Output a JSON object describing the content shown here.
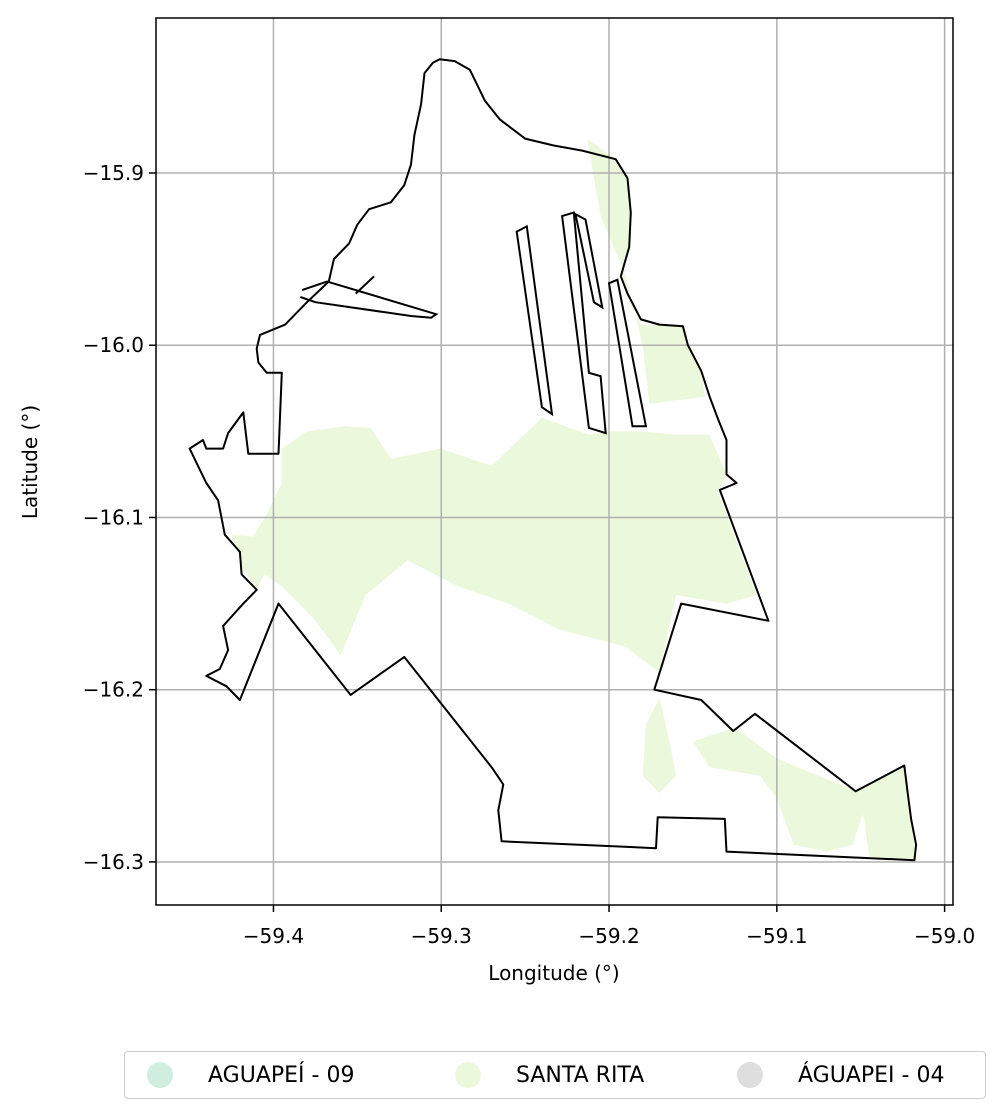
{
  "chart_data": {
    "type": "map",
    "xlabel": "Longitude (°)",
    "ylabel": "Latitude (°)",
    "xlim": [
      -59.47,
      -58.995
    ],
    "ylim": [
      -16.325,
      -15.81
    ],
    "xticks": [
      -59.4,
      -59.3,
      -59.2,
      -59.1,
      -59.0
    ],
    "xtick_labels": [
      "−59.4",
      "−59.3",
      "−59.2",
      "−59.1",
      "−59.0"
    ],
    "yticks": [
      -15.9,
      -16.0,
      -16.1,
      -16.2,
      -16.3
    ],
    "ytick_labels": [
      "−15.9",
      "−16.0",
      "−16.1",
      "−16.2",
      "−16.3"
    ],
    "grid": true,
    "legend": {
      "placement": "bottom-center",
      "entries": [
        {
          "label": "AGUAPEÍ - 09",
          "color": "#cfeee0"
        },
        {
          "label": "SANTA RITA",
          "color": "#ecf8dc"
        },
        {
          "label": "ÁGUAPEI - 04",
          "color": "#dedede"
        }
      ]
    },
    "outline_color": "#000000",
    "fill_color": "#ecf8dc",
    "boundary_lonlat": [
      [
        -59.301,
        -15.834
      ],
      [
        -59.292,
        -15.835
      ],
      [
        -59.283,
        -15.84
      ],
      [
        -59.274,
        -15.858
      ],
      [
        -59.265,
        -15.869
      ],
      [
        -59.25,
        -15.88
      ],
      [
        -59.233,
        -15.884
      ],
      [
        -59.216,
        -15.887
      ],
      [
        -59.196,
        -15.892
      ],
      [
        -59.189,
        -15.903
      ],
      [
        -59.187,
        -15.923
      ],
      [
        -59.188,
        -15.943
      ],
      [
        -59.193,
        -15.96
      ],
      [
        -59.189,
        -15.97
      ],
      [
        -59.181,
        -15.985
      ],
      [
        -59.17,
        -15.988
      ],
      [
        -59.156,
        -15.989
      ],
      [
        -59.153,
        -16.0
      ],
      [
        -59.145,
        -16.015
      ],
      [
        -59.14,
        -16.03
      ],
      [
        -59.135,
        -16.043
      ],
      [
        -59.13,
        -16.055
      ],
      [
        -59.13,
        -16.075
      ],
      [
        -59.124,
        -16.08
      ],
      [
        -59.134,
        -16.084
      ],
      [
        -59.105,
        -16.16
      ],
      [
        -59.157,
        -16.15
      ],
      [
        -59.173,
        -16.2
      ],
      [
        -59.145,
        -16.206
      ],
      [
        -59.126,
        -16.224
      ],
      [
        -59.113,
        -16.214
      ],
      [
        -59.053,
        -16.259
      ],
      [
        -59.024,
        -16.244
      ],
      [
        -59.022,
        -16.26
      ],
      [
        -59.02,
        -16.275
      ],
      [
        -59.017,
        -16.29
      ],
      [
        -59.018,
        -16.299
      ],
      [
        -59.13,
        -16.294
      ],
      [
        -59.131,
        -16.275
      ],
      [
        -59.171,
        -16.274
      ],
      [
        -59.172,
        -16.292
      ],
      [
        -59.264,
        -16.288
      ],
      [
        -59.266,
        -16.27
      ],
      [
        -59.263,
        -16.255
      ],
      [
        -59.27,
        -16.245
      ],
      [
        -59.322,
        -16.181
      ],
      [
        -59.354,
        -16.203
      ],
      [
        -59.397,
        -16.15
      ],
      [
        -59.42,
        -16.206
      ],
      [
        -59.428,
        -16.198
      ],
      [
        -59.44,
        -16.192
      ],
      [
        -59.432,
        -16.188
      ],
      [
        -59.427,
        -16.177
      ],
      [
        -59.43,
        -16.163
      ],
      [
        -59.418,
        -16.15
      ],
      [
        -59.41,
        -16.142
      ],
      [
        -59.419,
        -16.133
      ],
      [
        -59.42,
        -16.12
      ],
      [
        -59.429,
        -16.11
      ],
      [
        -59.433,
        -16.09
      ],
      [
        -59.44,
        -16.08
      ],
      [
        -59.45,
        -16.06
      ],
      [
        -59.442,
        -16.055
      ],
      [
        -59.44,
        -16.06
      ],
      [
        -59.43,
        -16.06
      ],
      [
        -59.427,
        -16.051
      ],
      [
        -59.418,
        -16.039
      ],
      [
        -59.415,
        -16.063
      ],
      [
        -59.397,
        -16.063
      ],
      [
        -59.395,
        -16.016
      ],
      [
        -59.404,
        -16.016
      ],
      [
        -59.409,
        -16.01
      ],
      [
        -59.41,
        -16.002
      ],
      [
        -59.408,
        -15.994
      ],
      [
        -59.393,
        -15.988
      ],
      [
        -59.38,
        -15.975
      ],
      [
        -59.367,
        -15.963
      ],
      [
        -59.364,
        -15.95
      ],
      [
        -59.355,
        -15.941
      ],
      [
        -59.35,
        -15.93
      ],
      [
        -59.343,
        -15.921
      ],
      [
        -59.33,
        -15.917
      ],
      [
        -59.322,
        -15.907
      ],
      [
        -59.318,
        -15.895
      ],
      [
        -59.316,
        -15.878
      ],
      [
        -59.312,
        -15.86
      ],
      [
        -59.31,
        -15.842
      ],
      [
        -59.305,
        -15.836
      ],
      [
        -59.301,
        -15.834
      ]
    ],
    "strips_lonlat": [
      [
        [
          -59.255,
          -15.934
        ],
        [
          -59.249,
          -15.931
        ],
        [
          -59.234,
          -16.04
        ],
        [
          -59.24,
          -16.036
        ]
      ],
      [
        [
          -59.228,
          -15.925
        ],
        [
          -59.221,
          -15.923
        ],
        [
          -59.212,
          -16.016
        ],
        [
          -59.205,
          -16.018
        ],
        [
          -59.202,
          -16.051
        ],
        [
          -59.212,
          -16.048
        ]
      ],
      [
        [
          -59.22,
          -15.924
        ],
        [
          -59.214,
          -15.927
        ],
        [
          -59.204,
          -15.978
        ],
        [
          -59.209,
          -15.975
        ]
      ],
      [
        [
          -59.2,
          -15.964
        ],
        [
          -59.195,
          -15.962
        ],
        [
          -59.178,
          -16.047
        ],
        [
          -59.186,
          -16.047
        ]
      ]
    ],
    "lines_lonlat": [
      [
        [
          -59.383,
          -15.968
        ],
        [
          -59.368,
          -15.963
        ],
        [
          -59.303,
          -15.982
        ],
        [
          -59.306,
          -15.984
        ],
        [
          -59.318,
          -15.983
        ],
        [
          -59.375,
          -15.975
        ],
        [
          -59.384,
          -15.972
        ]
      ],
      [
        [
          -59.351,
          -15.97
        ],
        [
          -59.34,
          -15.96
        ]
      ]
    ],
    "fill_regions_lonlat": [
      [
        [
          -59.395,
          -16.06
        ],
        [
          -59.38,
          -16.05
        ],
        [
          -59.358,
          -16.047
        ],
        [
          -59.342,
          -16.048
        ],
        [
          -59.33,
          -16.066
        ],
        [
          -59.3,
          -16.06
        ],
        [
          -59.27,
          -16.07
        ],
        [
          -59.24,
          -16.042
        ],
        [
          -59.212,
          -16.052
        ],
        [
          -59.2,
          -16.05
        ],
        [
          -59.18,
          -16.05
        ],
        [
          -59.16,
          -16.052
        ],
        [
          -59.14,
          -16.052
        ],
        [
          -59.13,
          -16.075
        ],
        [
          -59.135,
          -16.085
        ],
        [
          -59.112,
          -16.145
        ],
        [
          -59.13,
          -16.15
        ],
        [
          -59.16,
          -16.145
        ],
        [
          -59.17,
          -16.19
        ],
        [
          -59.19,
          -16.175
        ],
        [
          -59.23,
          -16.165
        ],
        [
          -59.26,
          -16.15
        ],
        [
          -59.29,
          -16.14
        ],
        [
          -59.32,
          -16.125
        ],
        [
          -59.345,
          -16.145
        ],
        [
          -59.36,
          -16.18
        ],
        [
          -59.375,
          -16.16
        ],
        [
          -59.395,
          -16.14
        ],
        [
          -59.41,
          -16.13
        ],
        [
          -59.415,
          -16.115
        ],
        [
          -59.405,
          -16.1
        ],
        [
          -59.395,
          -16.08
        ]
      ],
      [
        [
          -59.213,
          -15.88
        ],
        [
          -59.196,
          -15.892
        ],
        [
          -59.189,
          -15.903
        ],
        [
          -59.187,
          -15.923
        ],
        [
          -59.188,
          -15.943
        ],
        [
          -59.193,
          -15.96
        ],
        [
          -59.188,
          -15.975
        ],
        [
          -59.181,
          -15.988
        ],
        [
          -59.156,
          -15.989
        ],
        [
          -59.153,
          -16.0
        ],
        [
          -59.145,
          -16.015
        ],
        [
          -59.143,
          -16.03
        ],
        [
          -59.176,
          -16.034
        ],
        [
          -59.18,
          -16.0
        ],
        [
          -59.19,
          -15.96
        ],
        [
          -59.205,
          -15.925
        ]
      ],
      [
        [
          -59.15,
          -16.23
        ],
        [
          -59.14,
          -16.245
        ],
        [
          -59.11,
          -16.25
        ],
        [
          -59.1,
          -16.263
        ],
        [
          -59.09,
          -16.29
        ],
        [
          -59.07,
          -16.294
        ],
        [
          -59.055,
          -16.29
        ],
        [
          -59.045,
          -16.262
        ],
        [
          -59.1,
          -16.24
        ],
        [
          -59.125,
          -16.222
        ]
      ],
      [
        [
          -59.053,
          -16.259
        ],
        [
          -59.024,
          -16.244
        ],
        [
          -59.022,
          -16.26
        ],
        [
          -59.02,
          -16.275
        ],
        [
          -59.017,
          -16.299
        ],
        [
          -59.045,
          -16.297
        ],
        [
          -59.048,
          -16.275
        ]
      ],
      [
        [
          -59.17,
          -16.205
        ],
        [
          -59.165,
          -16.225
        ],
        [
          -59.16,
          -16.25
        ],
        [
          -59.17,
          -16.26
        ],
        [
          -59.18,
          -16.25
        ],
        [
          -59.178,
          -16.22
        ]
      ],
      [
        [
          -59.425,
          -16.11
        ],
        [
          -59.418,
          -16.13
        ],
        [
          -59.41,
          -16.142
        ],
        [
          -59.404,
          -16.13
        ],
        [
          -59.4,
          -16.112
        ]
      ]
    ]
  }
}
